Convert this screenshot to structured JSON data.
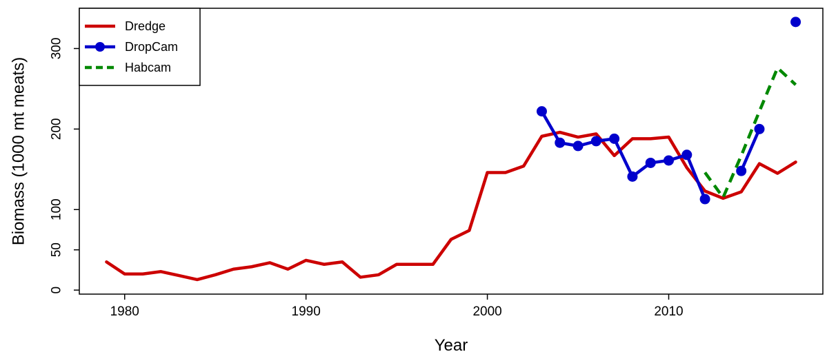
{
  "chart_data": {
    "type": "line",
    "title": "",
    "xlabel": "Year",
    "ylabel": "Biomass (1000 mt meats)",
    "xlim": [
      1977.5,
      2018.5
    ],
    "ylim": [
      -5,
      350
    ],
    "xticks": [
      1980,
      1990,
      2000,
      2010
    ],
    "yticks": [
      0,
      50,
      100,
      200,
      300
    ],
    "grid": false,
    "legend_position": "top-left",
    "series": [
      {
        "name": "Dredge",
        "color": "#cc0000",
        "style": "solid",
        "markers": false,
        "x": [
          1979,
          1980,
          1981,
          1982,
          1983,
          1984,
          1985,
          1986,
          1987,
          1988,
          1989,
          1990,
          1991,
          1992,
          1993,
          1994,
          1995,
          1996,
          1997,
          1998,
          1999,
          2000,
          2001,
          2002,
          2003,
          2004,
          2005,
          2006,
          2007,
          2008,
          2009,
          2010,
          2011,
          2012,
          2013,
          2014,
          2015,
          2016,
          2017
        ],
        "y": [
          35,
          20,
          20,
          23,
          18,
          13,
          19,
          26,
          29,
          34,
          26,
          37,
          32,
          35,
          16,
          19,
          32,
          32,
          32,
          63,
          74,
          146,
          146,
          154,
          191,
          196,
          190,
          194,
          167,
          188,
          188,
          190,
          152,
          123,
          114,
          122,
          157,
          145,
          159
        ]
      },
      {
        "name": "DropCam",
        "color": "#0000cc",
        "style": "solid",
        "markers": true,
        "x": [
          2003,
          2004,
          2005,
          2006,
          2007,
          2008,
          2009,
          2010,
          2011,
          2012,
          null,
          2014,
          2015,
          null,
          2017
        ],
        "y": [
          222,
          183,
          179,
          185,
          188,
          141,
          158,
          161,
          168,
          113,
          null,
          148,
          200,
          null,
          333
        ]
      },
      {
        "name": "Habcam",
        "color": "#008800",
        "style": "dashed",
        "markers": false,
        "x": [
          2012,
          2013,
          2014,
          2015,
          2016,
          2017
        ],
        "y": [
          146,
          115,
          167,
          222,
          276,
          255
        ]
      }
    ]
  }
}
